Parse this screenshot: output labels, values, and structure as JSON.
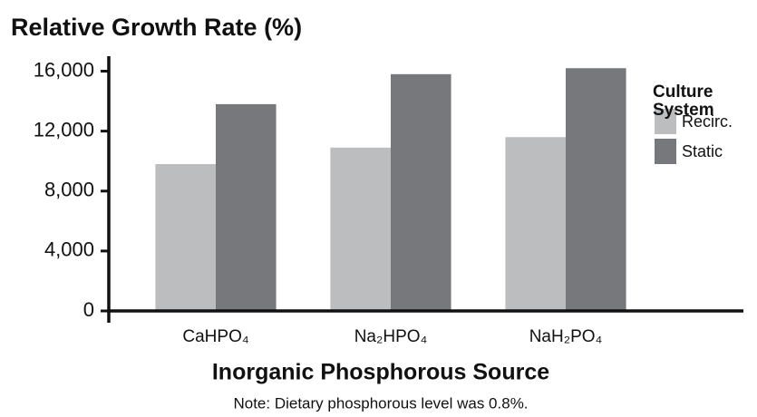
{
  "chart_data": {
    "type": "bar",
    "title": "Relative Growth Rate (%)",
    "x_label": "Inorganic Phosphorous Source",
    "note": "Note: Dietary phosphorous level was 0.8%.",
    "legend_title": "Culture System",
    "legend_position": "upper right",
    "categories": [
      "CaHPO₄",
      "Na₂HPO₄",
      "NaH₂PO₄"
    ],
    "series": [
      {
        "name": "Recirc.",
        "color": "#bcbdbf",
        "values": [
          9800,
          10900,
          11600
        ]
      },
      {
        "name": "Static",
        "color": "#77787b",
        "values": [
          13800,
          15800,
          16200
        ]
      }
    ],
    "ylim": [
      0,
      17000
    ],
    "yticks": [
      0,
      {
        "value": 4000,
        "label": "4,000"
      },
      {
        "value": 8000,
        "label": "8,000"
      },
      {
        "value": 12000,
        "label": "12,000"
      },
      {
        "value": 16000,
        "label": "16,000"
      }
    ],
    "grid": false
  }
}
